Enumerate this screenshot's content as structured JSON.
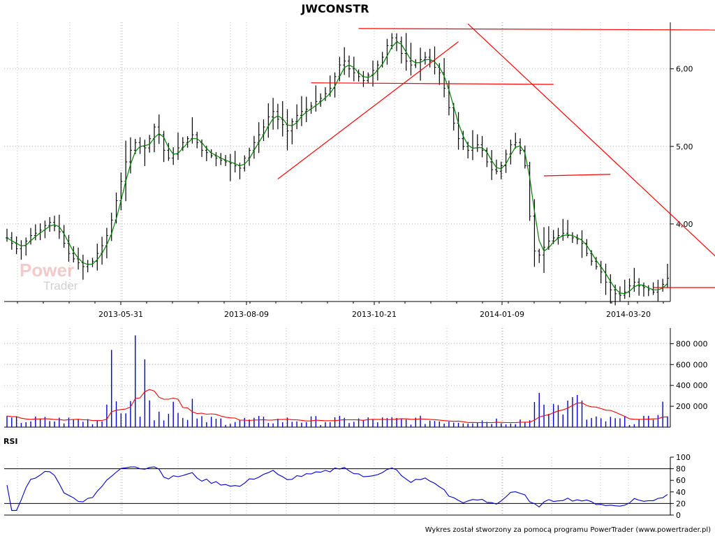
{
  "chart_data": {
    "type": "candlestick",
    "title": "JWCONSTR",
    "x_ticks": [
      "2013-05-31",
      "2013-08-09",
      "2013-10-21",
      "2014-01-09",
      "2014-03-20"
    ],
    "price": {
      "y_ticks": [
        "4,00",
        "5,00",
        "6,00"
      ],
      "y_tick_values": [
        4.0,
        5.0,
        6.0
      ],
      "ylim": [
        3.0,
        6.6
      ],
      "series": [
        {
          "name": "close",
          "values": [
            3.82,
            3.75,
            3.68,
            3.72,
            3.78,
            3.85,
            3.88,
            3.92,
            3.98,
            4.02,
            3.97,
            3.9,
            3.75,
            3.62,
            3.55,
            3.5,
            3.45,
            3.48,
            3.52,
            3.62,
            3.72,
            3.85,
            4.05,
            4.3,
            4.55,
            4.8,
            4.95,
            5.05,
            5.0,
            4.98,
            5.1,
            5.25,
            5.15,
            4.95,
            4.85,
            4.9,
            4.98,
            5.05,
            5.1,
            5.15,
            5.05,
            4.95,
            4.92,
            4.88,
            4.85,
            4.82,
            4.8,
            4.78,
            4.75,
            4.72,
            4.85,
            4.95,
            5.05,
            5.15,
            5.25,
            5.38,
            5.45,
            5.35,
            5.28,
            5.2,
            5.32,
            5.4,
            5.45,
            5.48,
            5.52,
            5.58,
            5.62,
            5.68,
            5.75,
            5.9,
            6.05,
            6.1,
            6.0,
            5.95,
            5.9,
            5.85,
            5.92,
            5.98,
            6.05,
            6.15,
            6.3,
            6.4,
            6.35,
            6.2,
            6.1,
            6.05,
            6.08,
            6.12,
            6.15,
            6.1,
            6.02,
            5.95,
            5.75,
            5.5,
            5.3,
            5.1,
            5.0,
            4.95,
            4.98,
            5.02,
            4.95,
            4.8,
            4.7,
            4.68,
            4.75,
            4.9,
            5.02,
            5.05,
            4.95,
            4.75,
            4.1,
            3.65,
            3.6,
            3.7,
            3.78,
            3.82,
            3.85,
            3.88,
            3.85,
            3.82,
            3.8,
            3.75,
            3.62,
            3.52,
            3.45,
            3.38,
            3.25,
            3.15,
            3.1,
            3.08,
            3.12,
            3.2,
            3.25,
            3.2,
            3.18,
            3.15,
            3.12,
            3.18,
            3.22,
            3.3
          ]
        }
      ],
      "annotations": [
        "resistance-line",
        "support-lines",
        "trend-lines"
      ]
    },
    "volume": {
      "y_ticks": [
        "200 000",
        "400 000",
        "600 000",
        "800 000"
      ],
      "y_tick_values": [
        200000,
        400000,
        600000,
        800000
      ],
      "ylim": [
        0,
        950000
      ]
    },
    "rsi": {
      "label": "RSI",
      "y_ticks": [
        "0",
        "20",
        "40",
        "60",
        "80",
        "100"
      ],
      "y_tick_values": [
        0,
        20,
        40,
        60,
        80,
        100
      ],
      "ylim": [
        0,
        100
      ],
      "reference_lines": [
        20,
        80
      ]
    },
    "colors": {
      "bars": "#000000",
      "ma": "#008000",
      "trend": "#ff0000",
      "volume": "#0000cc",
      "volume_ma": "#ff0000",
      "rsi": "#0000cc"
    }
  },
  "footer": "Wykres został stworzony za pomocą programu PowerTrader (www.powertrader.pl)",
  "logo": {
    "line1": "Power",
    "line2": "Trader"
  }
}
